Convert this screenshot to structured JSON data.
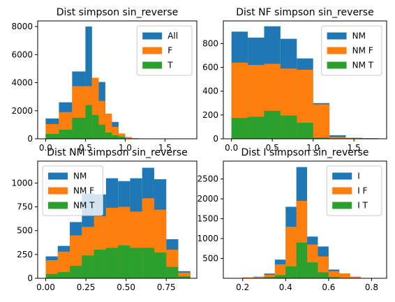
{
  "colors": {
    "c0": "#1f77b4",
    "c1": "#ff7f0e",
    "c2": "#2ca02c"
  },
  "chart_data": [
    {
      "type": "bar",
      "title": "Dist simpson sin_reverse",
      "xlim": [
        -0.1,
        1.9
      ],
      "ylim": [
        0,
        8400
      ],
      "xticks": [
        0.0,
        0.5,
        1.0,
        1.5
      ],
      "xtick_labels": [
        "0.0",
        "0.5",
        "1.0",
        "1.5"
      ],
      "yticks": [
        0,
        2000,
        4000,
        6000,
        8000
      ],
      "ytick_labels": [
        "0",
        "2000",
        "4000",
        "6000",
        "8000"
      ],
      "legend": "top-right",
      "series": [
        {
          "name": "All",
          "color": "#1f77b4",
          "bins": [
            [
              0.0,
              0.167,
              1450
            ],
            [
              0.167,
              0.333,
              2600
            ],
            [
              0.333,
              0.5,
              4800
            ],
            [
              0.5,
              0.583,
              8000
            ],
            [
              0.583,
              0.667,
              3600
            ],
            [
              0.667,
              0.75,
              4050
            ],
            [
              0.75,
              0.833,
              1700
            ],
            [
              0.833,
              0.917,
              1200
            ],
            [
              0.917,
              1.0,
              350
            ],
            [
              1.0,
              1.083,
              120
            ],
            [
              1.083,
              1.167,
              40
            ],
            [
              1.167,
              1.25,
              15
            ]
          ]
        },
        {
          "name": "F",
          "color": "#ff7f0e",
          "bins": [
            [
              0.0,
              0.167,
              1050
            ],
            [
              0.167,
              0.333,
              1900
            ],
            [
              0.333,
              0.5,
              3750
            ],
            [
              0.5,
              0.583,
              3750
            ],
            [
              0.583,
              0.667,
              4350
            ],
            [
              0.667,
              0.75,
              2700
            ],
            [
              0.75,
              0.833,
              1800
            ],
            [
              0.833,
              0.917,
              850
            ],
            [
              0.917,
              1.0,
              380
            ],
            [
              1.0,
              1.083,
              110
            ],
            [
              1.083,
              1.167,
              35
            ],
            [
              1.167,
              1.25,
              10
            ]
          ]
        },
        {
          "name": "T",
          "color": "#2ca02c",
          "bins": [
            [
              0.0,
              0.167,
              350
            ],
            [
              0.167,
              0.333,
              650
            ],
            [
              0.333,
              0.5,
              1500
            ],
            [
              0.5,
              0.583,
              2400
            ],
            [
              0.583,
              0.667,
              1700
            ],
            [
              0.667,
              0.75,
              1000
            ],
            [
              0.75,
              0.833,
              450
            ],
            [
              0.833,
              0.917,
              250
            ],
            [
              0.917,
              1.0,
              150
            ]
          ]
        }
      ]
    },
    {
      "type": "bar",
      "title": "Dist NF simpson sin_reverse",
      "xlim": [
        -0.1,
        1.9
      ],
      "ylim": [
        0,
        990
      ],
      "xticks": [
        0.0,
        0.5,
        1.0,
        1.5
      ],
      "xtick_labels": [
        "0.0",
        "0.5",
        "1.0",
        "1.5"
      ],
      "yticks": [
        0,
        200,
        400,
        600,
        800
      ],
      "ytick_labels": [
        "0",
        "200",
        "400",
        "600",
        "800"
      ],
      "legend": "top-right",
      "series": [
        {
          "name": "NM",
          "color": "#1f77b4",
          "bins": [
            [
              0.0,
              0.2,
              900
            ],
            [
              0.2,
              0.4,
              850
            ],
            [
              0.4,
              0.6,
              945
            ],
            [
              0.6,
              0.8,
              840
            ],
            [
              0.8,
              1.0,
              675
            ],
            [
              1.0,
              1.2,
              300
            ],
            [
              1.2,
              1.4,
              30
            ],
            [
              1.4,
              1.6,
              8
            ],
            [
              1.6,
              1.8,
              5
            ]
          ]
        },
        {
          "name": "NM F",
          "color": "#ff7f0e",
          "bins": [
            [
              0.0,
              0.2,
              640
            ],
            [
              0.2,
              0.4,
              620
            ],
            [
              0.4,
              0.6,
              630
            ],
            [
              0.6,
              0.8,
              590
            ],
            [
              0.8,
              1.0,
              580
            ],
            [
              1.0,
              1.2,
              290
            ],
            [
              1.2,
              1.4,
              15
            ],
            [
              1.4,
              1.6,
              5
            ],
            [
              1.6,
              1.8,
              3
            ]
          ]
        },
        {
          "name": "NM T",
          "color": "#2ca02c",
          "bins": [
            [
              0.0,
              0.2,
              175
            ],
            [
              0.2,
              0.4,
              185
            ],
            [
              0.4,
              0.6,
              235
            ],
            [
              0.6,
              0.8,
              195
            ],
            [
              0.8,
              1.0,
              135
            ],
            [
              1.0,
              1.2,
              10
            ]
          ]
        }
      ]
    },
    {
      "type": "bar",
      "title": "Dist NM simpson sin_reverse",
      "xlim": [
        -0.05,
        0.94
      ],
      "ylim": [
        0,
        1230
      ],
      "xticks": [
        0.0,
        0.25,
        0.5,
        0.75
      ],
      "xtick_labels": [
        "0.00",
        "0.25",
        "0.50",
        "0.75"
      ],
      "yticks": [
        0,
        250,
        500,
        750,
        1000
      ],
      "ytick_labels": [
        "0",
        "250",
        "500",
        "750",
        "1000"
      ],
      "legend": "top-left",
      "series": [
        {
          "name": "NM",
          "color": "#1f77b4",
          "bins": [
            [
              0.0,
              0.075,
              230
            ],
            [
              0.075,
              0.15,
              340
            ],
            [
              0.15,
              0.225,
              590
            ],
            [
              0.225,
              0.3,
              890
            ],
            [
              0.3,
              0.375,
              880
            ],
            [
              0.375,
              0.45,
              1050
            ],
            [
              0.45,
              0.525,
              1020
            ],
            [
              0.525,
              0.6,
              1050
            ],
            [
              0.6,
              0.675,
              1160
            ],
            [
              0.675,
              0.75,
              1040
            ],
            [
              0.75,
              0.825,
              410
            ],
            [
              0.825,
              0.9,
              75
            ]
          ]
        },
        {
          "name": "NM F",
          "color": "#ff7f0e",
          "bins": [
            [
              0.0,
              0.075,
              190
            ],
            [
              0.075,
              0.15,
              280
            ],
            [
              0.15,
              0.225,
              450
            ],
            [
              0.225,
              0.3,
              540
            ],
            [
              0.3,
              0.375,
              650
            ],
            [
              0.375,
              0.45,
              740
            ],
            [
              0.45,
              0.525,
              750
            ],
            [
              0.525,
              0.6,
              700
            ],
            [
              0.6,
              0.675,
              840
            ],
            [
              0.675,
              0.75,
              720
            ],
            [
              0.75,
              0.825,
              300
            ],
            [
              0.825,
              0.9,
              60
            ]
          ]
        },
        {
          "name": "NM T",
          "color": "#2ca02c",
          "bins": [
            [
              0.0,
              0.075,
              45
            ],
            [
              0.075,
              0.15,
              65
            ],
            [
              0.15,
              0.225,
              130
            ],
            [
              0.225,
              0.3,
              240
            ],
            [
              0.3,
              0.375,
              300
            ],
            [
              0.375,
              0.45,
              320
            ],
            [
              0.45,
              0.525,
              345
            ],
            [
              0.525,
              0.6,
              320
            ],
            [
              0.6,
              0.675,
              320
            ],
            [
              0.675,
              0.75,
              270
            ],
            [
              0.75,
              0.825,
              120
            ],
            [
              0.825,
              0.9,
              20
            ]
          ]
        }
      ]
    },
    {
      "type": "bar",
      "title": "Dist I simpson sin_reverse",
      "xlim": [
        0.11,
        0.87
      ],
      "ylim": [
        0,
        2950
      ],
      "xticks": [
        0.2,
        0.4,
        0.6,
        0.8
      ],
      "xtick_labels": [
        "0.2",
        "0.4",
        "0.6",
        "0.8"
      ],
      "yticks": [
        500,
        1000,
        1500,
        2000,
        2500
      ],
      "ytick_labels": [
        "500",
        "1000",
        "1500",
        "2000",
        "2500"
      ],
      "legend": "top-right",
      "series": [
        {
          "name": "I",
          "color": "#1f77b4",
          "bins": [
            [
              0.2,
              0.25,
              20
            ],
            [
              0.25,
              0.3,
              40
            ],
            [
              0.3,
              0.35,
              120
            ],
            [
              0.35,
              0.4,
              470
            ],
            [
              0.4,
              0.45,
              1800
            ],
            [
              0.45,
              0.5,
              2800
            ],
            [
              0.5,
              0.55,
              1050
            ],
            [
              0.55,
              0.6,
              800
            ],
            [
              0.6,
              0.65,
              220
            ],
            [
              0.65,
              0.7,
              120
            ],
            [
              0.7,
              0.75,
              40
            ]
          ]
        },
        {
          "name": "I F",
          "color": "#ff7f0e",
          "bins": [
            [
              0.2,
              0.25,
              20
            ],
            [
              0.25,
              0.3,
              35
            ],
            [
              0.3,
              0.35,
              90
            ],
            [
              0.35,
              0.4,
              350
            ],
            [
              0.4,
              0.45,
              1300
            ],
            [
              0.45,
              0.5,
              1950
            ],
            [
              0.5,
              0.55,
              850
            ],
            [
              0.55,
              0.6,
              550
            ],
            [
              0.6,
              0.65,
              180
            ],
            [
              0.65,
              0.7,
              120
            ],
            [
              0.7,
              0.75,
              40
            ]
          ]
        },
        {
          "name": "I T",
          "color": "#2ca02c",
          "bins": [
            [
              0.25,
              0.3,
              10
            ],
            [
              0.3,
              0.35,
              30
            ],
            [
              0.35,
              0.4,
              80
            ],
            [
              0.4,
              0.45,
              300
            ],
            [
              0.45,
              0.5,
              900
            ],
            [
              0.5,
              0.55,
              400
            ],
            [
              0.55,
              0.6,
              150
            ],
            [
              0.6,
              0.65,
              30
            ]
          ]
        }
      ]
    }
  ]
}
